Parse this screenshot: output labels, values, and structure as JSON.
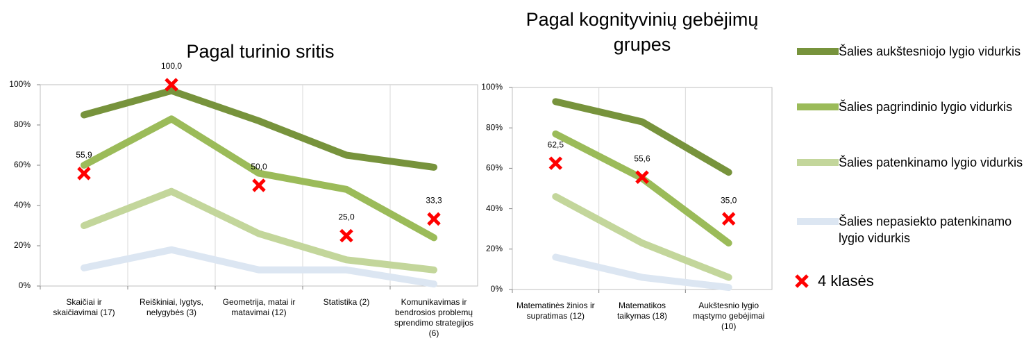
{
  "chart_data": [
    {
      "type": "line",
      "title": "Pagal turinio sritis",
      "categories": [
        "Skaičiai ir skaičiavimai (17)",
        "Reiškiniai, lygtys, nelygybės (3)",
        "Geometrija, matai ir matavimai (12)",
        "Statistika (2)",
        "Komunikavimas ir bendrosios problemų sprendimo strategijos (6)"
      ],
      "ylim": [
        0,
        100
      ],
      "yticks": [
        {
          "value": 0,
          "label": "0%"
        },
        {
          "value": 20,
          "label": "20%"
        },
        {
          "value": 40,
          "label": "40%"
        },
        {
          "value": 60,
          "label": "60%"
        },
        {
          "value": 80,
          "label": "80%"
        },
        {
          "value": 100,
          "label": "100%"
        }
      ],
      "grid": true,
      "series": [
        {
          "name": "Šalies aukštesniojo lygio vidurkis",
          "color": "#77933c",
          "values": [
            85,
            97,
            82,
            65,
            59
          ]
        },
        {
          "name": "Šalies pagrindinio lygio vidurkis",
          "color": "#9bbb59",
          "values": [
            60,
            83,
            56,
            48,
            24
          ]
        },
        {
          "name": "Šalies patenkinamo lygio vidurkis",
          "color": "#c3d69b",
          "values": [
            30,
            47,
            26,
            13,
            8
          ]
        },
        {
          "name": "Šalies nepasiekto patenkinamo lygio vidurkis",
          "color": "#dce6f2",
          "values": [
            9,
            18,
            8,
            8,
            1
          ]
        },
        {
          "name": "4 klasės",
          "color": "#ff0000",
          "marker": "x",
          "values": [
            55.9,
            100,
            50,
            25,
            33.3
          ],
          "value_labels": [
            "55,9",
            "100,0",
            "50,0",
            "25,0",
            "33,3"
          ]
        }
      ]
    },
    {
      "type": "line",
      "title": "Pagal kognityvinių gebėjimų grupes",
      "categories": [
        "Matematinės žinios ir supratimas (12)",
        "Matematikos taikymas (18)",
        "Aukštesnio lygio mąstymo gebėjimai (10)"
      ],
      "ylim": [
        0,
        100
      ],
      "yticks": [
        {
          "value": 0,
          "label": "0%"
        },
        {
          "value": 20,
          "label": "20%"
        },
        {
          "value": 40,
          "label": "40%"
        },
        {
          "value": 60,
          "label": "60%"
        },
        {
          "value": 80,
          "label": "80%"
        },
        {
          "value": 100,
          "label": "100%"
        }
      ],
      "grid": true,
      "series": [
        {
          "color": "#77933c",
          "values": [
            93,
            83,
            58
          ]
        },
        {
          "color": "#9bbb59",
          "values": [
            77,
            55,
            23
          ]
        },
        {
          "color": "#c3d69b",
          "values": [
            46,
            23,
            6
          ]
        },
        {
          "color": "#dce6f2",
          "values": [
            16,
            6,
            1
          ]
        },
        {
          "color": "#ff0000",
          "marker": "x",
          "values": [
            62.5,
            55.6,
            35.0
          ],
          "value_labels": [
            "62,5",
            "55,6",
            "35,0"
          ]
        }
      ]
    }
  ]
}
